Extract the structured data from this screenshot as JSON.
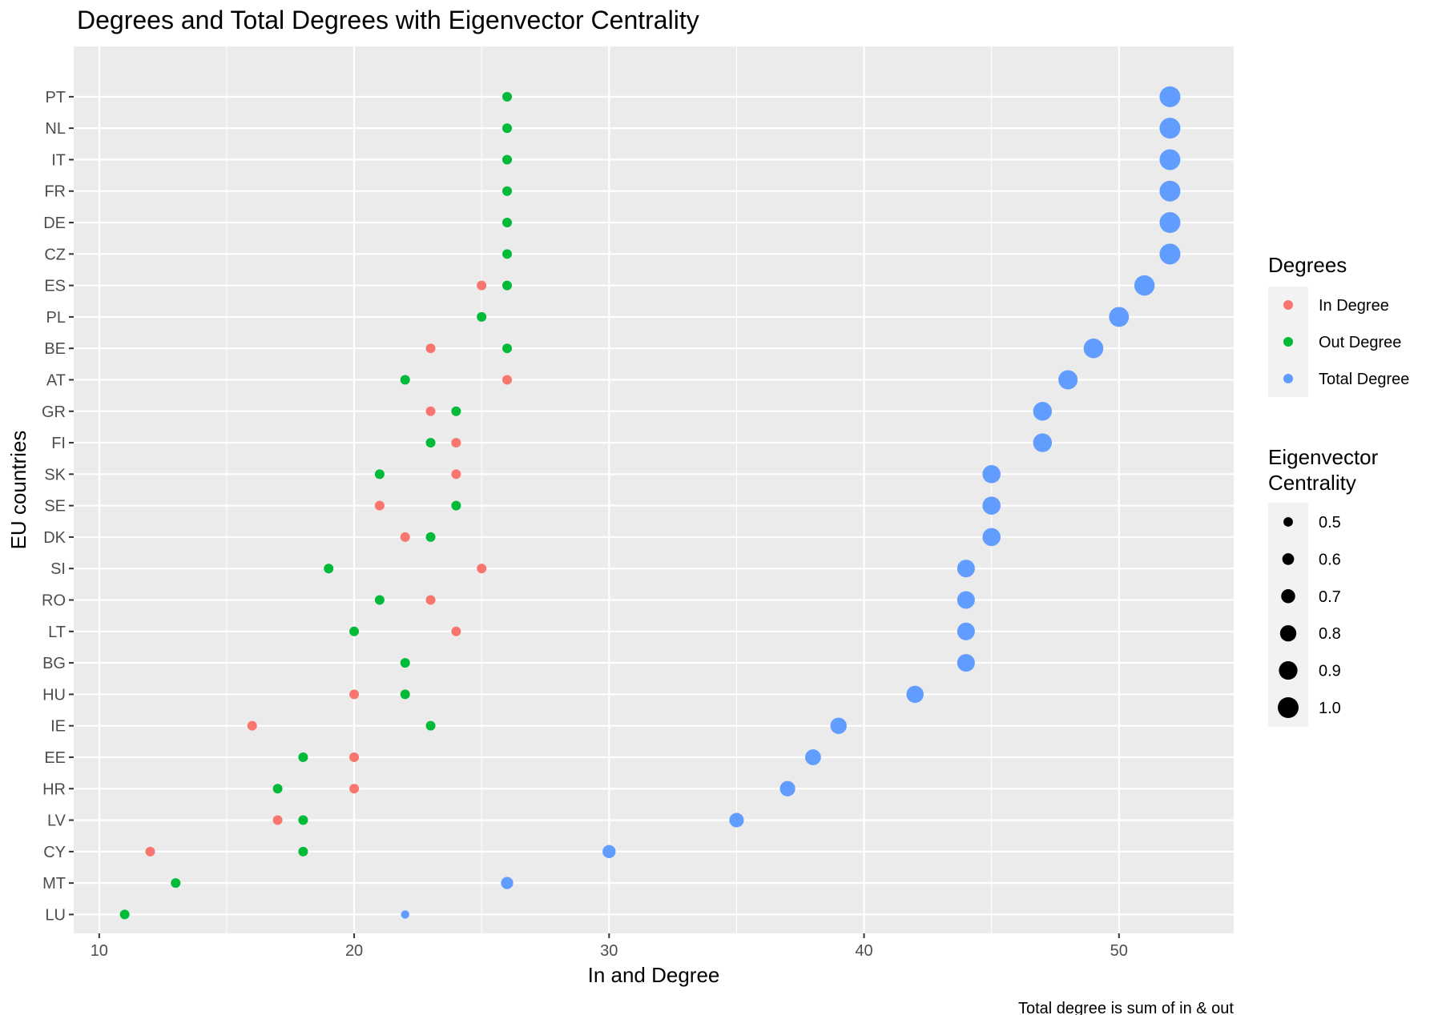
{
  "chart_data": {
    "type": "scatter",
    "title": "Degrees and Total Degrees with Eigenvector Centrality",
    "xlabel": "In and Degree",
    "ylabel": "EU countries",
    "caption": "Total degree is sum of in & out",
    "xlim": [
      9,
      54.5
    ],
    "xticks": [
      10,
      20,
      30,
      40,
      50
    ],
    "grid": true,
    "categories": [
      "LU",
      "MT",
      "CY",
      "LV",
      "HR",
      "EE",
      "IE",
      "HU",
      "BG",
      "LT",
      "RO",
      "SI",
      "DK",
      "SE",
      "SK",
      "FI",
      "GR",
      "AT",
      "BE",
      "PL",
      "ES",
      "CZ",
      "DE",
      "FR",
      "IT",
      "NL",
      "PT"
    ],
    "series": [
      {
        "name": "In Degree",
        "color": "#F8766D",
        "values": [
          null,
          null,
          12,
          17,
          20,
          20,
          16,
          20,
          null,
          24,
          23,
          25,
          22,
          21,
          24,
          24,
          23,
          26,
          23,
          null,
          25,
          null,
          null,
          null,
          null,
          null,
          null
        ]
      },
      {
        "name": "Out Degree",
        "color": "#00BA38",
        "values": [
          11,
          13,
          18,
          18,
          17,
          18,
          23,
          22,
          22,
          20,
          21,
          19,
          23,
          24,
          21,
          23,
          24,
          22,
          26,
          25,
          26,
          26,
          26,
          26,
          26,
          26,
          26
        ]
      },
      {
        "name": "Total Degree",
        "color": "#619CFF",
        "values": [
          22,
          26,
          30,
          35,
          37,
          38,
          39,
          42,
          44,
          44,
          44,
          44,
          45,
          45,
          45,
          47,
          47,
          48,
          49,
          50,
          51,
          52,
          52,
          52,
          52,
          52,
          52
        ],
        "eigenvector_centrality": [
          0.45,
          0.62,
          0.66,
          0.72,
          0.76,
          0.78,
          0.8,
          0.84,
          0.86,
          0.86,
          0.86,
          0.86,
          0.88,
          0.88,
          0.88,
          0.91,
          0.91,
          0.93,
          0.95,
          0.96,
          0.98,
          1.0,
          1.0,
          1.0,
          1.0,
          1.0,
          1.0
        ]
      }
    ],
    "legend": {
      "color_title": "Degrees",
      "color_items": [
        {
          "label": "In Degree",
          "color": "#F8766D"
        },
        {
          "label": "Out Degree",
          "color": "#00BA38"
        },
        {
          "label": "Total Degree",
          "color": "#619CFF"
        }
      ],
      "size_title_line1": "Eigenvector",
      "size_title_line2": "Centrality",
      "size_items": [
        {
          "label": "0.5",
          "value": 0.5
        },
        {
          "label": "0.6",
          "value": 0.6
        },
        {
          "label": "0.7",
          "value": 0.7
        },
        {
          "label": "0.8",
          "value": 0.8
        },
        {
          "label": "0.9",
          "value": 0.9
        },
        {
          "label": "1.0",
          "value": 1.0
        }
      ],
      "position": "right"
    }
  }
}
